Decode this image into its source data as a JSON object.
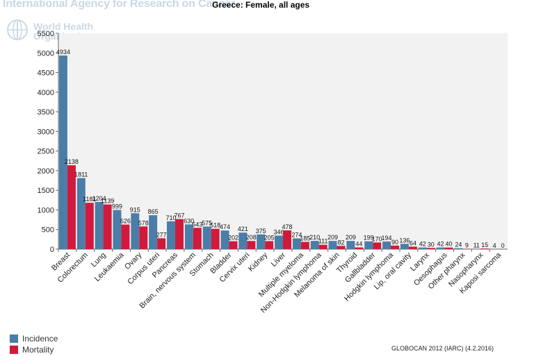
{
  "header": {
    "watermark": "International Agency for Research on Cancer",
    "who_line1": "World Health",
    "who_line2": "Organization"
  },
  "source": "GLOBOCAN 2012 (IARC) (4.2.2016)",
  "colors": {
    "incidence": "#4a7ea8",
    "mortality": "#d01a3c",
    "plot_bg": "#f2f2f2"
  },
  "chart_data": {
    "type": "bar",
    "title": "Greece: Female, all ages",
    "xlabel": "",
    "ylabel": "",
    "ylim": [
      0,
      5500
    ],
    "yticks": [
      0,
      500,
      1000,
      1500,
      2000,
      2500,
      3000,
      3500,
      4000,
      4500,
      5000,
      5500
    ],
    "categories": [
      "Breast",
      "Colorectum",
      "Lung",
      "Leukaemia",
      "Ovary",
      "Corpus uteri",
      "Pancreas",
      "Brain, nervous system",
      "Stomach",
      "Bladder",
      "Cervix uteri",
      "Kidney",
      "Liver",
      "Multiple myeloma",
      "Non-Hodgkin lymphoma",
      "Melanoma of skin",
      "Thyroid",
      "Gallbladder",
      "Hodgkin lymphoma",
      "Lip, oral cavity",
      "Larynx",
      "Oesophagus",
      "Other pharynx",
      "Nasopharynx",
      "Kaposi sarcoma"
    ],
    "series": [
      {
        "name": "Incidence",
        "values": [
          4934,
          1811,
          1204,
          999,
          915,
          865,
          710,
          630,
          575,
          474,
          421,
          375,
          346,
          274,
          210,
          209,
          209,
          199,
          194,
          136,
          42,
          42,
          24,
          11,
          4
        ]
      },
      {
        "name": "Mortality",
        "values": [
          2138,
          1181,
          1139,
          626,
          578,
          277,
          767,
          543,
          518,
          202,
          208,
          205,
          478,
          185,
          111,
          82,
          44,
          170,
          90,
          64,
          30,
          40,
          9,
          15,
          0
        ]
      }
    ],
    "grid": false,
    "legend": "bottom-left"
  }
}
